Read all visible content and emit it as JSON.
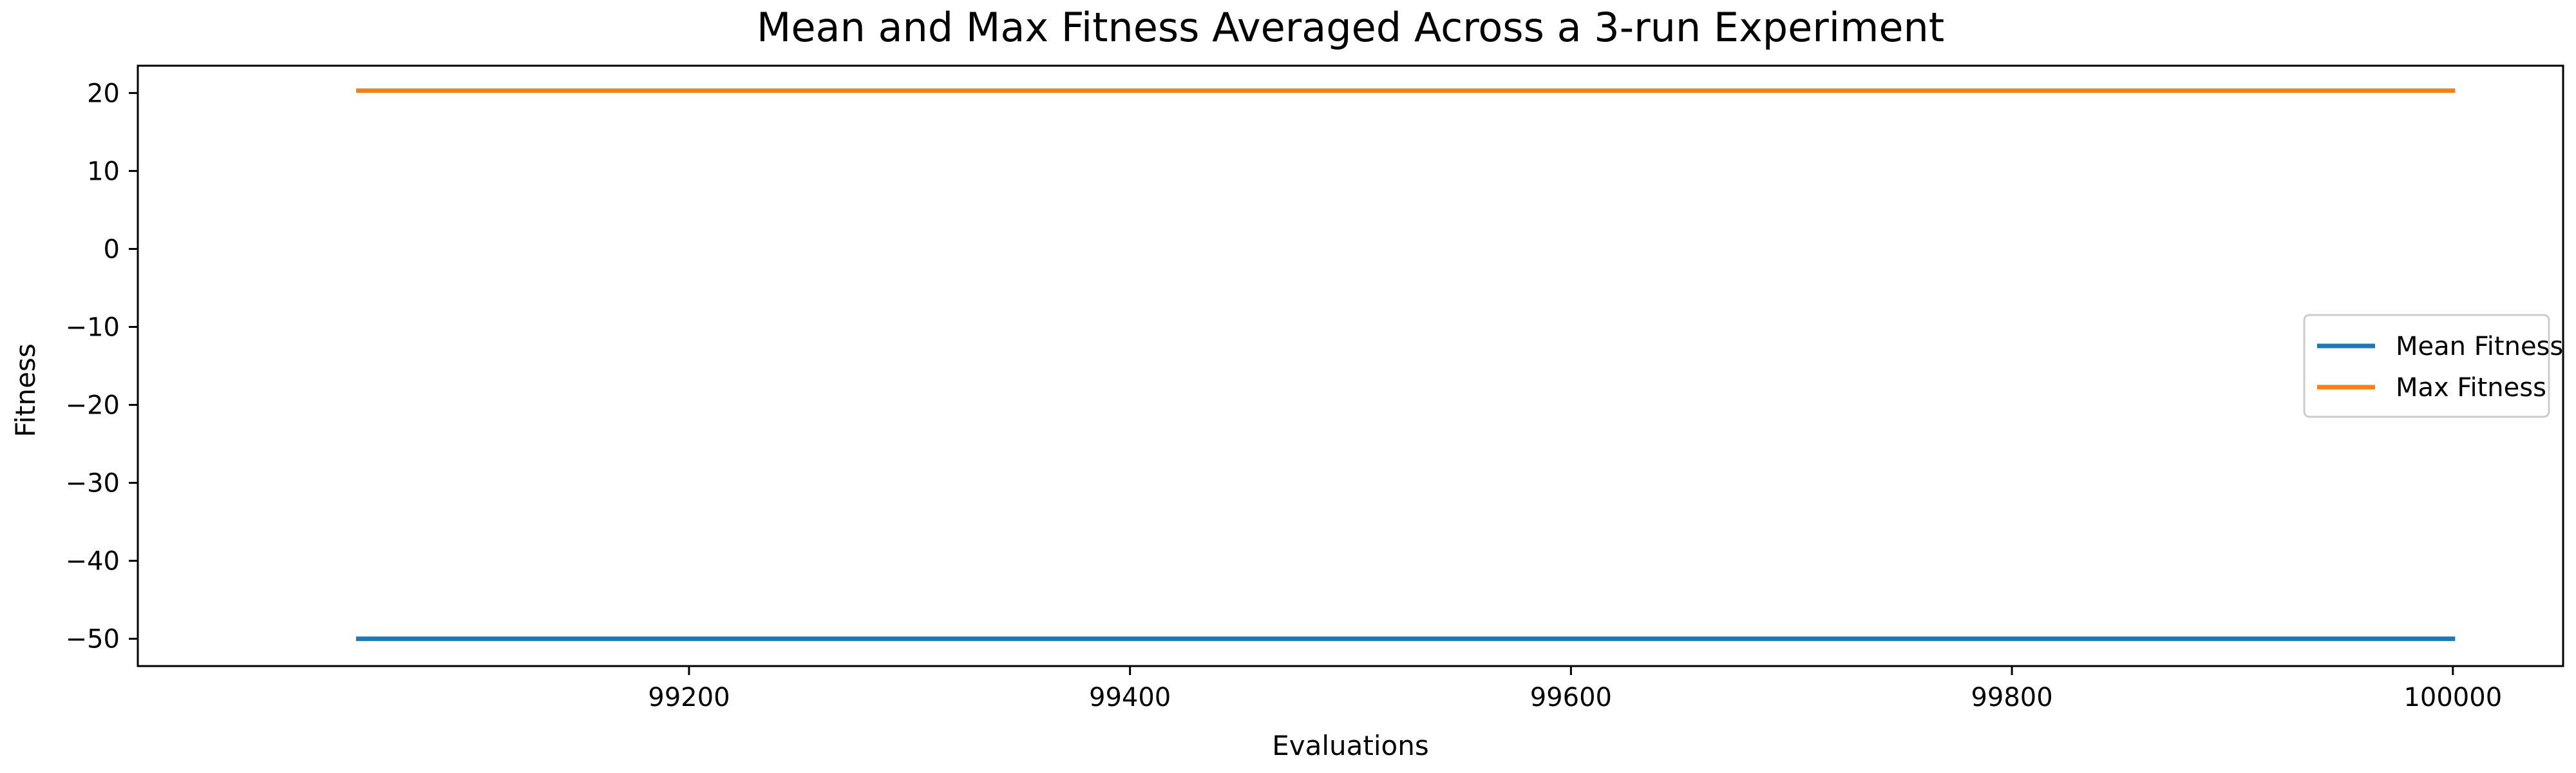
{
  "chart_data": {
    "type": "line",
    "title": "Mean and Max Fitness Averaged Across a 3-run Experiment",
    "xlabel": "Evaluations",
    "ylabel": "Fitness",
    "xlim": [
      98950,
      100050
    ],
    "ylim": [
      -53.5,
      23.5
    ],
    "x_ticks": [
      99200,
      99400,
      99600,
      99800,
      100000
    ],
    "y_ticks": [
      -50,
      -40,
      -30,
      -20,
      -10,
      0,
      10,
      20
    ],
    "x_tick_labels": [
      "99200",
      "99400",
      "99600",
      "99800",
      "100000"
    ],
    "y_tick_labels": [
      "−50",
      "−40",
      "−30",
      "−20",
      "−10",
      "0",
      "10",
      "20"
    ],
    "grid": false,
    "legend_position": "center-right",
    "series": [
      {
        "name": "Mean Fitness",
        "color": "#1f77b4",
        "x": [
          99050,
          100000
        ],
        "y": [
          -50,
          -50
        ]
      },
      {
        "name": "Max Fitness",
        "color": "#ff7f0e",
        "x": [
          99050,
          100000
        ],
        "y": [
          20.3,
          20.3
        ]
      }
    ]
  }
}
